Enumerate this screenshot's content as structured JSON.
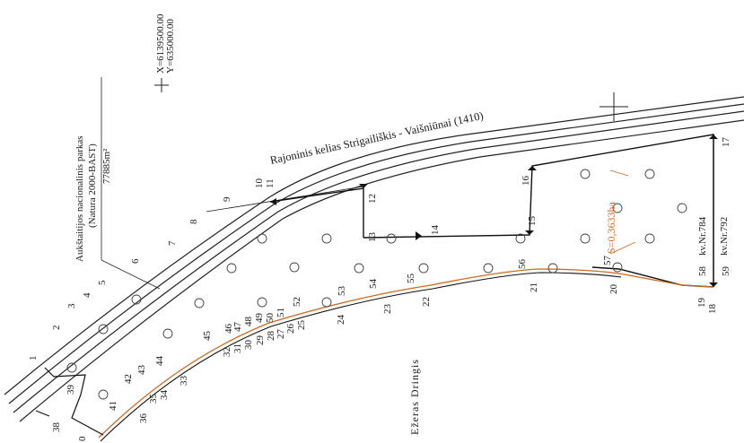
{
  "map": {
    "coord_x": "X=6139500.00",
    "coord_y": "Y=635000.00",
    "road_label": "Rajoninis kelias Strigailiškis - Vaišniūnai (1410)",
    "park_name": "Aukštaitijos nacionalinis parkas",
    "park_code": "(Natura 2000-BAST)",
    "park_area": "77885m²",
    "lake_name": "Ežeras Dringis",
    "plot_area": "S=0,3633ha",
    "kv_784": "kv.Nr.784",
    "kv_792": "kv.Nr.792",
    "colors": {
      "boundary": "#111111",
      "lake_shore": "#d2691e",
      "area_label": "#d2691e",
      "road": "#222222"
    },
    "points": {
      "p0": "0",
      "p1": "1",
      "p2": "2",
      "p3": "3",
      "p4": "4",
      "p5": "5",
      "p6": "6",
      "p7": "7",
      "p8": "8",
      "p9": "9",
      "p10": "10",
      "p11": "11",
      "p12": "12",
      "p13": "13",
      "p14": "14",
      "p15": "15",
      "p16": "16",
      "p17": "17",
      "p18": "18",
      "p19": "19",
      "p20": "20",
      "p21": "21",
      "p22": "22",
      "p23": "23",
      "p24": "24",
      "p25": "25",
      "p26": "26",
      "p27": "27",
      "p28": "28",
      "p29": "29",
      "p30": "30",
      "p31": "31",
      "p32": "32",
      "p33": "33",
      "p34": "34",
      "p35": "35",
      "p36": "36",
      "p38": "38",
      "p39": "39",
      "p41": "41",
      "p42": "42",
      "p43": "43",
      "p44": "44",
      "p45": "45",
      "p46": "46",
      "p47": "47",
      "p48": "48",
      "p49": "49",
      "p50": "50",
      "p51": "51",
      "p52": "52",
      "p53": "53",
      "p54": "54",
      "p55": "55",
      "p56": "56",
      "p57": "57",
      "p58": "58",
      "p59": "59"
    }
  }
}
